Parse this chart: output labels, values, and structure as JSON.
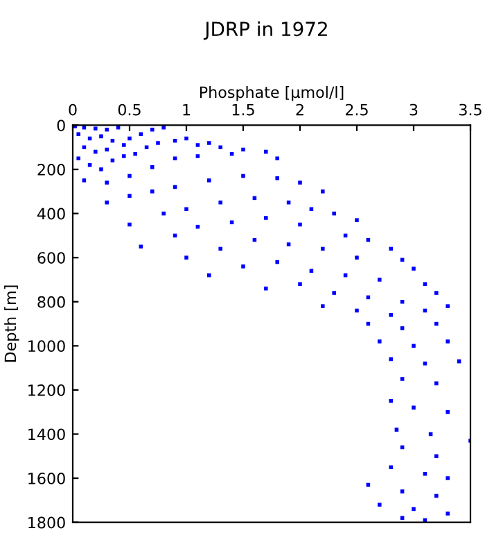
{
  "chart_data": {
    "type": "scatter",
    "title": "JDRP in 1972",
    "xlabel": "Phosphate [μmol/l]",
    "ylabel": "Depth [m]",
    "xlim": [
      0,
      3.5
    ],
    "xticks": [
      0,
      0.5,
      1,
      1.5,
      2,
      2.5,
      3,
      3.5
    ],
    "ylim": [
      1800,
      0
    ],
    "yticks": [
      0,
      200,
      400,
      600,
      800,
      1000,
      1200,
      1400,
      1600,
      1800
    ],
    "marker": "square",
    "grid": false,
    "legend": false,
    "series": [
      {
        "color": "#0000ff",
        "x": [
          0.02,
          0.1,
          0.2,
          0.3,
          0.4,
          0.05,
          0.15,
          0.25,
          0.35,
          0.1,
          0.2,
          0.3,
          0.45,
          0.5,
          0.6,
          0.7,
          0.8,
          0.05,
          0.15,
          0.25,
          0.35,
          0.45,
          0.55,
          0.65,
          0.75,
          0.9,
          1.0,
          1.1,
          1.2,
          1.3,
          0.1,
          0.3,
          0.5,
          0.7,
          0.9,
          1.1,
          1.4,
          1.5,
          1.7,
          1.8,
          0.3,
          0.5,
          0.7,
          0.9,
          1.2,
          1.5,
          1.8,
          2.0,
          2.2,
          0.5,
          0.8,
          1.0,
          1.3,
          1.6,
          1.9,
          2.1,
          2.3,
          2.5,
          0.6,
          0.9,
          1.1,
          1.4,
          1.7,
          2.0,
          2.4,
          2.6,
          2.8,
          1.0,
          1.3,
          1.6,
          1.9,
          2.2,
          2.5,
          2.9,
          3.0,
          1.2,
          1.5,
          1.8,
          2.1,
          2.4,
          2.7,
          3.1,
          1.7,
          2.0,
          2.3,
          2.6,
          2.9,
          3.2,
          2.2,
          2.5,
          2.8,
          3.1,
          3.3,
          2.6,
          2.9,
          3.2,
          2.7,
          3.0,
          3.3,
          2.8,
          3.1,
          3.4,
          2.9,
          3.2,
          2.8,
          3.0,
          3.3,
          2.85,
          3.15,
          3.5,
          2.9,
          3.2,
          2.8,
          3.1,
          3.3,
          2.6,
          2.9,
          3.2,
          2.7,
          3.0,
          3.3,
          2.9,
          3.1
        ],
        "values": [
          5,
          10,
          15,
          20,
          10,
          40,
          60,
          50,
          70,
          100,
          120,
          110,
          90,
          60,
          40,
          20,
          10,
          150,
          180,
          200,
          160,
          140,
          130,
          100,
          80,
          70,
          60,
          90,
          80,
          100,
          250,
          260,
          230,
          190,
          150,
          140,
          130,
          110,
          120,
          150,
          350,
          320,
          300,
          280,
          250,
          230,
          240,
          260,
          300,
          450,
          400,
          380,
          350,
          330,
          350,
          380,
          400,
          430,
          550,
          500,
          460,
          440,
          420,
          450,
          500,
          520,
          560,
          600,
          560,
          520,
          540,
          560,
          600,
          610,
          650,
          680,
          640,
          620,
          660,
          680,
          700,
          720,
          740,
          720,
          760,
          780,
          800,
          760,
          820,
          840,
          860,
          840,
          820,
          900,
          920,
          900,
          980,
          1000,
          980,
          1060,
          1080,
          1070,
          1150,
          1170,
          1250,
          1280,
          1300,
          1380,
          1400,
          1430,
          1460,
          1500,
          1550,
          1580,
          1600,
          1630,
          1660,
          1680,
          1720,
          1740,
          1760,
          1780,
          1790
        ]
      }
    ]
  }
}
